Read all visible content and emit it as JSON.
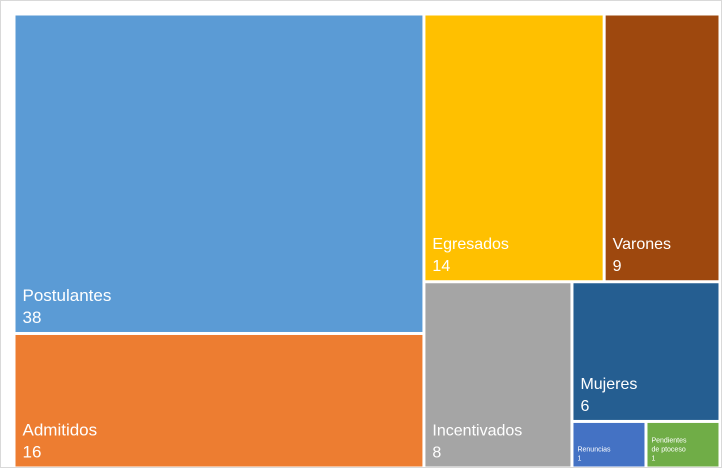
{
  "chart_data": {
    "type": "treemap",
    "title": "",
    "grid": false,
    "legend": "none",
    "items": [
      {
        "label": "Postulantes",
        "value": 38,
        "color": "#5b9bd5"
      },
      {
        "label": "Admitidos",
        "value": 16,
        "color": "#ed7d31"
      },
      {
        "label": "Egresados",
        "value": 14,
        "color": "#ffc000"
      },
      {
        "label": "Varones",
        "value": 9,
        "color": "#9e480e"
      },
      {
        "label": "Incentivados",
        "value": 8,
        "color": "#a5a5a5"
      },
      {
        "label": "Mujeres",
        "value": 6,
        "color": "#255e91"
      },
      {
        "label": "Renuncias",
        "value": 1,
        "color": "#4472c4"
      },
      {
        "label": "Pendientes de ptoceso",
        "value": 1,
        "color": "#70ad47"
      }
    ]
  }
}
